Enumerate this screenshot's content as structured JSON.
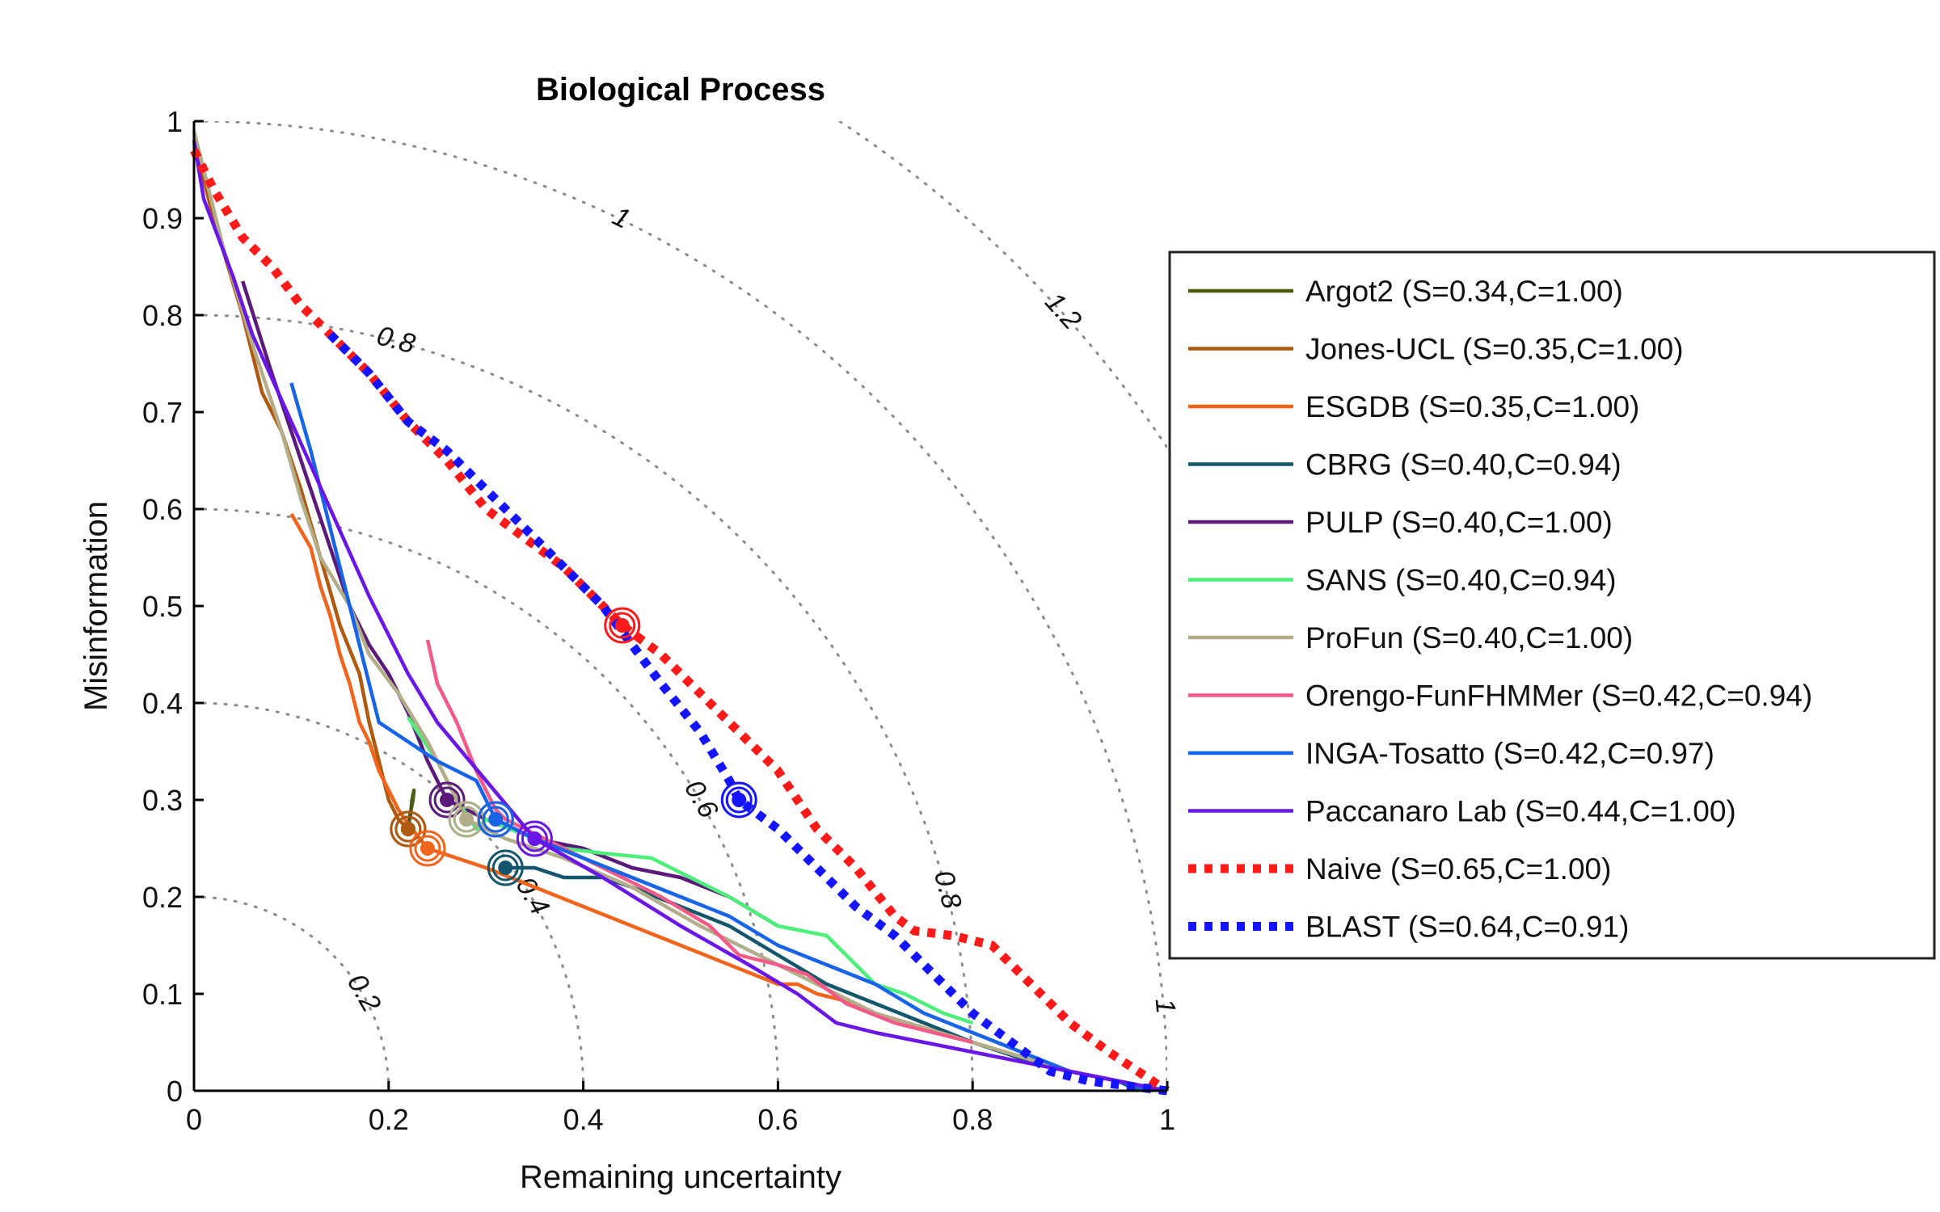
{
  "chart_data": {
    "type": "line",
    "title": "Biological Process",
    "xlabel": "Remaining uncertainty",
    "ylabel": "Misinformation",
    "xlim": [
      0,
      1
    ],
    "ylim": [
      0,
      1
    ],
    "xticks": [
      "0",
      "0.2",
      "0.4",
      "0.6",
      "0.8",
      "1"
    ],
    "yticks": [
      "0",
      "0.1",
      "0.2",
      "0.3",
      "0.4",
      "0.5",
      "0.6",
      "0.7",
      "0.8",
      "0.9",
      "1"
    ],
    "grid": false,
    "legend_position": "right",
    "contours": [
      {
        "r": 0.2,
        "label": "0.2",
        "label_angle_deg": 30
      },
      {
        "r": 0.4,
        "label": "0.4",
        "label_angle_deg": 30
      },
      {
        "r": 0.6,
        "label": "0.6",
        "label_angle_deg": 30
      },
      {
        "r": 0.8,
        "label": "0.8",
        "label_angle_deg": 15
      },
      {
        "r": 1.0,
        "label": "1",
        "label_angle_deg": 5
      },
      {
        "r": 0.8,
        "label": "0.8",
        "label_angle_deg": 75
      },
      {
        "r": 1.0,
        "label": "1",
        "label_angle_deg": 64
      },
      {
        "r": 1.2,
        "label": "1.2",
        "label_angle_deg": 42
      }
    ],
    "series": [
      {
        "name": "Argot2 (S=0.34,C=1.00)",
        "color": "#4b5b12",
        "dash": false,
        "points": [
          [
            0.22,
            0.27
          ],
          [
            0.222,
            0.285
          ],
          [
            0.223,
            0.29
          ],
          [
            0.225,
            0.3
          ],
          [
            0.226,
            0.31
          ],
          [
            0.224,
            0.3
          ],
          [
            0.222,
            0.28
          ]
        ],
        "optimum": [
          0.22,
          0.27
        ]
      },
      {
        "name": "Jones-UCL (S=0.35,C=1.00)",
        "color": "#b05a10",
        "dash": false,
        "points": [
          [
            0.0,
            0.98
          ],
          [
            0.02,
            0.9
          ],
          [
            0.05,
            0.8
          ],
          [
            0.07,
            0.72
          ],
          [
            0.09,
            0.68
          ],
          [
            0.11,
            0.62
          ],
          [
            0.13,
            0.55
          ],
          [
            0.15,
            0.48
          ],
          [
            0.17,
            0.43
          ],
          [
            0.18,
            0.38
          ],
          [
            0.19,
            0.34
          ],
          [
            0.2,
            0.3
          ],
          [
            0.21,
            0.28
          ],
          [
            0.22,
            0.27
          ]
        ],
        "optimum": [
          0.22,
          0.27
        ]
      },
      {
        "name": "ESGDB (S=0.35,C=1.00)",
        "color": "#f2641c",
        "dash": false,
        "points": [
          [
            0.1,
            0.595
          ],
          [
            0.12,
            0.56
          ],
          [
            0.13,
            0.52
          ],
          [
            0.14,
            0.49
          ],
          [
            0.15,
            0.45
          ],
          [
            0.16,
            0.42
          ],
          [
            0.17,
            0.38
          ],
          [
            0.18,
            0.36
          ],
          [
            0.19,
            0.33
          ],
          [
            0.2,
            0.31
          ],
          [
            0.21,
            0.29
          ],
          [
            0.22,
            0.275
          ],
          [
            0.24,
            0.25
          ],
          [
            0.3,
            0.23
          ],
          [
            0.4,
            0.19
          ],
          [
            0.5,
            0.15
          ],
          [
            0.6,
            0.11
          ],
          [
            0.62,
            0.11
          ],
          [
            0.64,
            0.1
          ],
          [
            0.68,
            0.09
          ],
          [
            0.7,
            0.08
          ],
          [
            0.8,
            0.05
          ],
          [
            0.9,
            0.02
          ],
          [
            1.0,
            0.0
          ]
        ],
        "optimum": [
          0.24,
          0.25
        ]
      },
      {
        "name": "CBRG (S=0.40,C=0.94)",
        "color": "#14566b",
        "dash": false,
        "points": [
          [
            0.32,
            0.23
          ],
          [
            0.35,
            0.23
          ],
          [
            0.38,
            0.22
          ],
          [
            0.42,
            0.22
          ],
          [
            0.45,
            0.21
          ],
          [
            0.5,
            0.19
          ],
          [
            0.55,
            0.17
          ],
          [
            0.6,
            0.14
          ],
          [
            0.65,
            0.11
          ],
          [
            0.7,
            0.09
          ],
          [
            0.75,
            0.07
          ],
          [
            0.8,
            0.05
          ],
          [
            0.86,
            0.03
          ],
          [
            0.9,
            0.02
          ],
          [
            0.95,
            0.01
          ],
          [
            0.97,
            0.0
          ]
        ],
        "optimum": [
          0.32,
          0.23
        ]
      },
      {
        "name": "PULP (S=0.40,C=1.00)",
        "color": "#5b1a7a",
        "dash": false,
        "points": [
          [
            0.05,
            0.835
          ],
          [
            0.08,
            0.74
          ],
          [
            0.1,
            0.68
          ],
          [
            0.12,
            0.62
          ],
          [
            0.14,
            0.56
          ],
          [
            0.16,
            0.5
          ],
          [
            0.18,
            0.46
          ],
          [
            0.2,
            0.43
          ],
          [
            0.22,
            0.39
          ],
          [
            0.24,
            0.34
          ],
          [
            0.26,
            0.3
          ],
          [
            0.3,
            0.28
          ],
          [
            0.35,
            0.26
          ],
          [
            0.4,
            0.25
          ],
          [
            0.45,
            0.23
          ],
          [
            0.5,
            0.22
          ],
          [
            0.55,
            0.2
          ],
          [
            0.6,
            0.17
          ]
        ],
        "optimum": [
          0.26,
          0.3
        ]
      },
      {
        "name": "SANS (S=0.40,C=0.94)",
        "color": "#4cef7a",
        "dash": false,
        "points": [
          [
            0.22,
            0.385
          ],
          [
            0.25,
            0.34
          ],
          [
            0.27,
            0.3
          ],
          [
            0.29,
            0.27
          ],
          [
            0.3,
            0.28
          ],
          [
            0.35,
            0.26
          ],
          [
            0.38,
            0.25
          ],
          [
            0.42,
            0.245
          ],
          [
            0.47,
            0.24
          ],
          [
            0.5,
            0.225
          ],
          [
            0.55,
            0.2
          ],
          [
            0.6,
            0.17
          ],
          [
            0.65,
            0.16
          ],
          [
            0.68,
            0.13
          ],
          [
            0.7,
            0.11
          ],
          [
            0.73,
            0.1
          ],
          [
            0.77,
            0.08
          ],
          [
            0.8,
            0.07
          ]
        ],
        "optimum": [
          0.28,
          0.28
        ]
      },
      {
        "name": "ProFun (S=0.40,C=1.00)",
        "color": "#b3ad8a",
        "dash": false,
        "points": [
          [
            0.0,
            0.99
          ],
          [
            0.03,
            0.87
          ],
          [
            0.06,
            0.77
          ],
          [
            0.09,
            0.68
          ],
          [
            0.11,
            0.61
          ],
          [
            0.13,
            0.55
          ],
          [
            0.16,
            0.5
          ],
          [
            0.18,
            0.45
          ],
          [
            0.21,
            0.41
          ],
          [
            0.24,
            0.36
          ],
          [
            0.26,
            0.32
          ],
          [
            0.28,
            0.28
          ],
          [
            0.32,
            0.26
          ],
          [
            0.38,
            0.24
          ],
          [
            0.45,
            0.21
          ],
          [
            0.52,
            0.17
          ],
          [
            0.6,
            0.13
          ],
          [
            0.7,
            0.08
          ],
          [
            0.8,
            0.05
          ],
          [
            0.9,
            0.02
          ],
          [
            1.0,
            0.0
          ]
        ],
        "optimum": [
          0.28,
          0.28
        ]
      },
      {
        "name": "Orengo-FunFHMMer (S=0.42,C=0.94)",
        "color": "#f35a88",
        "dash": false,
        "points": [
          [
            0.24,
            0.465
          ],
          [
            0.25,
            0.42
          ],
          [
            0.27,
            0.38
          ],
          [
            0.29,
            0.33
          ],
          [
            0.31,
            0.29
          ],
          [
            0.32,
            0.28
          ],
          [
            0.36,
            0.26
          ],
          [
            0.42,
            0.23
          ],
          [
            0.48,
            0.2
          ],
          [
            0.53,
            0.17
          ],
          [
            0.56,
            0.14
          ],
          [
            0.6,
            0.13
          ],
          [
            0.63,
            0.12
          ],
          [
            0.67,
            0.09
          ],
          [
            0.72,
            0.07
          ],
          [
            0.8,
            0.05
          ]
        ],
        "optimum": [
          0.31,
          0.28
        ]
      },
      {
        "name": "INGA-Tosatto (S=0.42,C=0.97)",
        "color": "#1764e8",
        "dash": false,
        "points": [
          [
            0.1,
            0.73
          ],
          [
            0.12,
            0.66
          ],
          [
            0.14,
            0.58
          ],
          [
            0.16,
            0.5
          ],
          [
            0.18,
            0.42
          ],
          [
            0.19,
            0.38
          ],
          [
            0.22,
            0.36
          ],
          [
            0.25,
            0.34
          ],
          [
            0.29,
            0.32
          ],
          [
            0.31,
            0.28
          ],
          [
            0.35,
            0.26
          ],
          [
            0.4,
            0.24
          ],
          [
            0.45,
            0.22
          ],
          [
            0.5,
            0.2
          ],
          [
            0.55,
            0.18
          ],
          [
            0.6,
            0.15
          ],
          [
            0.65,
            0.13
          ],
          [
            0.7,
            0.11
          ],
          [
            0.75,
            0.08
          ],
          [
            0.8,
            0.06
          ],
          [
            0.85,
            0.04
          ],
          [
            0.9,
            0.02
          ],
          [
            0.95,
            0.01
          ],
          [
            0.98,
            0.0
          ]
        ],
        "optimum": [
          0.31,
          0.28
        ]
      },
      {
        "name": "Paccanaro Lab (S=0.44,C=1.00)",
        "color": "#6a16e6",
        "dash": false,
        "points": [
          [
            0.0,
            0.98
          ],
          [
            0.01,
            0.92
          ],
          [
            0.04,
            0.84
          ],
          [
            0.06,
            0.78
          ],
          [
            0.1,
            0.69
          ],
          [
            0.14,
            0.6
          ],
          [
            0.18,
            0.51
          ],
          [
            0.22,
            0.43
          ],
          [
            0.25,
            0.38
          ],
          [
            0.3,
            0.32
          ],
          [
            0.35,
            0.26
          ],
          [
            0.42,
            0.22
          ],
          [
            0.5,
            0.17
          ],
          [
            0.57,
            0.13
          ],
          [
            0.62,
            0.1
          ],
          [
            0.66,
            0.07
          ],
          [
            0.7,
            0.06
          ],
          [
            0.75,
            0.05
          ],
          [
            0.8,
            0.04
          ],
          [
            0.85,
            0.03
          ],
          [
            0.9,
            0.02
          ],
          [
            0.95,
            0.01
          ],
          [
            1.0,
            0.0
          ]
        ],
        "optimum": [
          0.35,
          0.26
        ]
      },
      {
        "name": "Naive (S=0.65,C=1.00)",
        "color": "#ff1a1a",
        "dash": true,
        "points": [
          [
            0.0,
            0.97
          ],
          [
            0.02,
            0.93
          ],
          [
            0.05,
            0.88
          ],
          [
            0.08,
            0.85
          ],
          [
            0.11,
            0.81
          ],
          [
            0.14,
            0.78
          ],
          [
            0.18,
            0.74
          ],
          [
            0.22,
            0.69
          ],
          [
            0.26,
            0.65
          ],
          [
            0.3,
            0.6
          ],
          [
            0.34,
            0.57
          ],
          [
            0.38,
            0.54
          ],
          [
            0.42,
            0.5
          ],
          [
            0.44,
            0.48
          ],
          [
            0.48,
            0.45
          ],
          [
            0.52,
            0.41
          ],
          [
            0.56,
            0.37
          ],
          [
            0.6,
            0.33
          ],
          [
            0.64,
            0.27
          ],
          [
            0.68,
            0.23
          ],
          [
            0.72,
            0.18
          ],
          [
            0.74,
            0.165
          ],
          [
            0.78,
            0.16
          ],
          [
            0.82,
            0.15
          ],
          [
            0.86,
            0.11
          ],
          [
            0.9,
            0.07
          ],
          [
            0.94,
            0.04
          ],
          [
            0.97,
            0.02
          ],
          [
            1.0,
            0.0
          ]
        ],
        "optimum": [
          0.44,
          0.48
        ]
      },
      {
        "name": "BLAST (S=0.64,C=0.91)",
        "color": "#1414ff",
        "dash": true,
        "points": [
          [
            0.14,
            0.78
          ],
          [
            0.18,
            0.74
          ],
          [
            0.22,
            0.69
          ],
          [
            0.26,
            0.66
          ],
          [
            0.3,
            0.62
          ],
          [
            0.34,
            0.58
          ],
          [
            0.38,
            0.54
          ],
          [
            0.42,
            0.5
          ],
          [
            0.45,
            0.46
          ],
          [
            0.48,
            0.42
          ],
          [
            0.52,
            0.37
          ],
          [
            0.55,
            0.32
          ],
          [
            0.56,
            0.3
          ],
          [
            0.6,
            0.27
          ],
          [
            0.64,
            0.23
          ],
          [
            0.68,
            0.19
          ],
          [
            0.72,
            0.16
          ],
          [
            0.76,
            0.12
          ],
          [
            0.8,
            0.08
          ],
          [
            0.84,
            0.05
          ],
          [
            0.88,
            0.02
          ],
          [
            0.92,
            0.01
          ],
          [
            0.96,
            0.005
          ],
          [
            1.0,
            0.0
          ]
        ],
        "optimum": [
          0.56,
          0.3
        ]
      }
    ]
  }
}
